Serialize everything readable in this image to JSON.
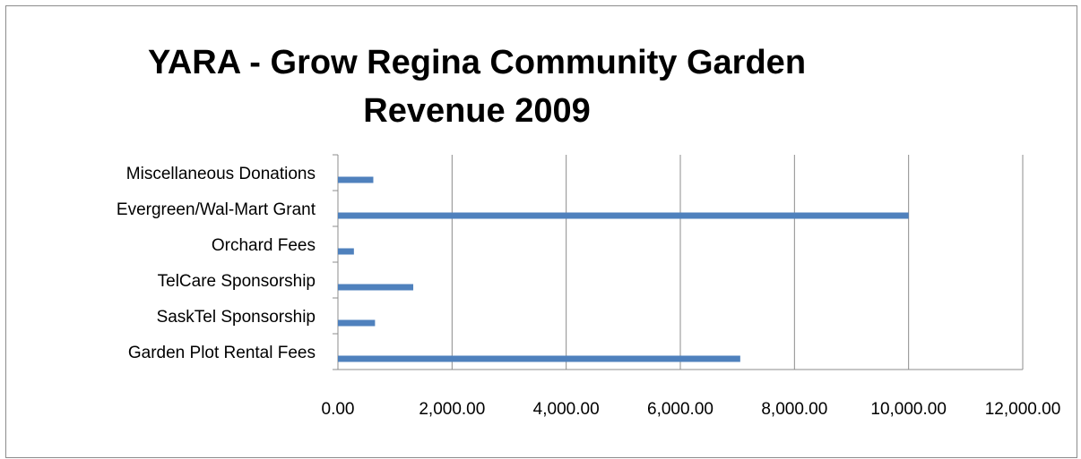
{
  "chart_data": {
    "type": "bar",
    "orientation": "horizontal",
    "title_lines": [
      "YARA - Grow Regina Community Garden",
      "Revenue 2009"
    ],
    "categories": [
      "Garden Plot Rental Fees",
      "SaskTel Sponsorship",
      "TelCare Sponsorship",
      "Orchard Fees",
      "Evergreen/Wal-Mart Grant",
      "Miscellaneous Donations"
    ],
    "values": [
      7050,
      650,
      1320,
      280,
      10000,
      620
    ],
    "xlim": [
      0,
      12000
    ],
    "x_ticks": [
      "0.00",
      "2,000.00",
      "4,000.00",
      "6,000.00",
      "8,000.00",
      "10,000.00",
      "12,000.00"
    ],
    "x_tick_values": [
      0,
      2000,
      4000,
      6000,
      8000,
      10000,
      12000
    ],
    "grid": "vertical",
    "legend": "none",
    "bar_color": "#4f81bd"
  }
}
